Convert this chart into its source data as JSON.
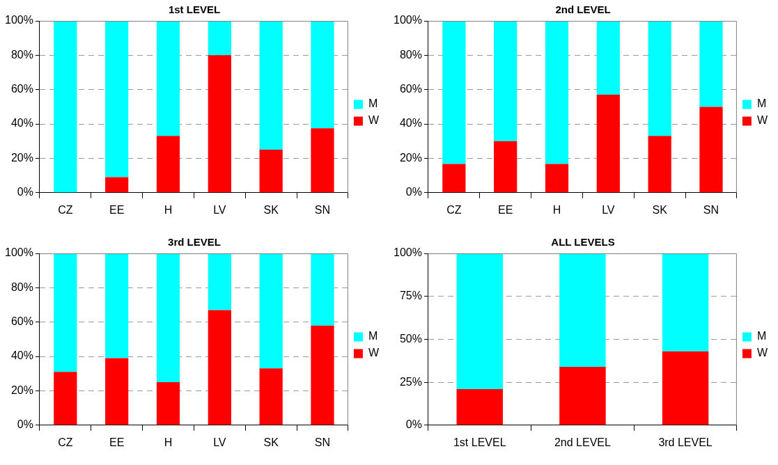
{
  "chart_data": [
    {
      "type": "bar",
      "title": "1st LEVEL",
      "categories": [
        "CZ",
        "EE",
        "H",
        "LV",
        "SK",
        "SN"
      ],
      "stacked": true,
      "series": [
        {
          "name": "W",
          "color": "#ff0000",
          "values": [
            0,
            9,
            33,
            80,
            25,
            37.5
          ]
        },
        {
          "name": "M",
          "color": "#00ffff",
          "values": [
            100,
            91,
            67,
            20,
            75,
            62.5
          ]
        }
      ],
      "ylim": [
        0,
        100
      ],
      "yticks": [
        {
          "value": 0,
          "label": "0%"
        },
        {
          "value": 20,
          "label": "20%"
        },
        {
          "value": 40,
          "label": "40%"
        },
        {
          "value": 60,
          "label": "60%"
        },
        {
          "value": 80,
          "label": "80%"
        },
        {
          "value": 100,
          "label": "100%"
        }
      ],
      "grid": "y",
      "legend": "right"
    },
    {
      "type": "bar",
      "title": "2nd LEVEL",
      "categories": [
        "CZ",
        "EE",
        "H",
        "LV",
        "SK",
        "SN"
      ],
      "stacked": true,
      "series": [
        {
          "name": "W",
          "color": "#ff0000",
          "values": [
            16.7,
            30,
            16.7,
            57,
            33,
            50
          ]
        },
        {
          "name": "M",
          "color": "#00ffff",
          "values": [
            83.3,
            70,
            83.3,
            43,
            67,
            50
          ]
        }
      ],
      "ylim": [
        0,
        100
      ],
      "yticks": [
        {
          "value": 0,
          "label": "0%"
        },
        {
          "value": 20,
          "label": "20%"
        },
        {
          "value": 40,
          "label": "40%"
        },
        {
          "value": 60,
          "label": "60%"
        },
        {
          "value": 80,
          "label": "80%"
        },
        {
          "value": 100,
          "label": "100%"
        }
      ],
      "grid": "y",
      "legend": "right"
    },
    {
      "type": "bar",
      "title": "3rd LEVEL",
      "categories": [
        "CZ",
        "EE",
        "H",
        "LV",
        "SK",
        "SN"
      ],
      "stacked": true,
      "series": [
        {
          "name": "W",
          "color": "#ff0000",
          "values": [
            31,
            39,
            25,
            67,
            33,
            58
          ]
        },
        {
          "name": "M",
          "color": "#00ffff",
          "values": [
            69,
            61,
            75,
            33,
            67,
            42
          ]
        }
      ],
      "ylim": [
        0,
        100
      ],
      "yticks": [
        {
          "value": 0,
          "label": "0%"
        },
        {
          "value": 20,
          "label": "20%"
        },
        {
          "value": 40,
          "label": "40%"
        },
        {
          "value": 60,
          "label": "60%"
        },
        {
          "value": 80,
          "label": "80%"
        },
        {
          "value": 100,
          "label": "100%"
        }
      ],
      "grid": "y",
      "legend": "right"
    },
    {
      "type": "bar",
      "title": "ALL LEVELS",
      "categories": [
        "1st LEVEL",
        "2nd LEVEL",
        "3rd LEVEL"
      ],
      "stacked": true,
      "series": [
        {
          "name": "W",
          "color": "#ff0000",
          "values": [
            21,
            34,
            43
          ]
        },
        {
          "name": "M",
          "color": "#00ffff",
          "values": [
            79,
            66,
            57
          ]
        }
      ],
      "ylim": [
        0,
        100
      ],
      "yticks": [
        {
          "value": 0,
          "label": "0%"
        },
        {
          "value": 25,
          "label": "25%"
        },
        {
          "value": 50,
          "label": "50%"
        },
        {
          "value": 75,
          "label": "75%"
        },
        {
          "value": 100,
          "label": "100%"
        }
      ],
      "grid": "y",
      "legend": "right"
    }
  ]
}
